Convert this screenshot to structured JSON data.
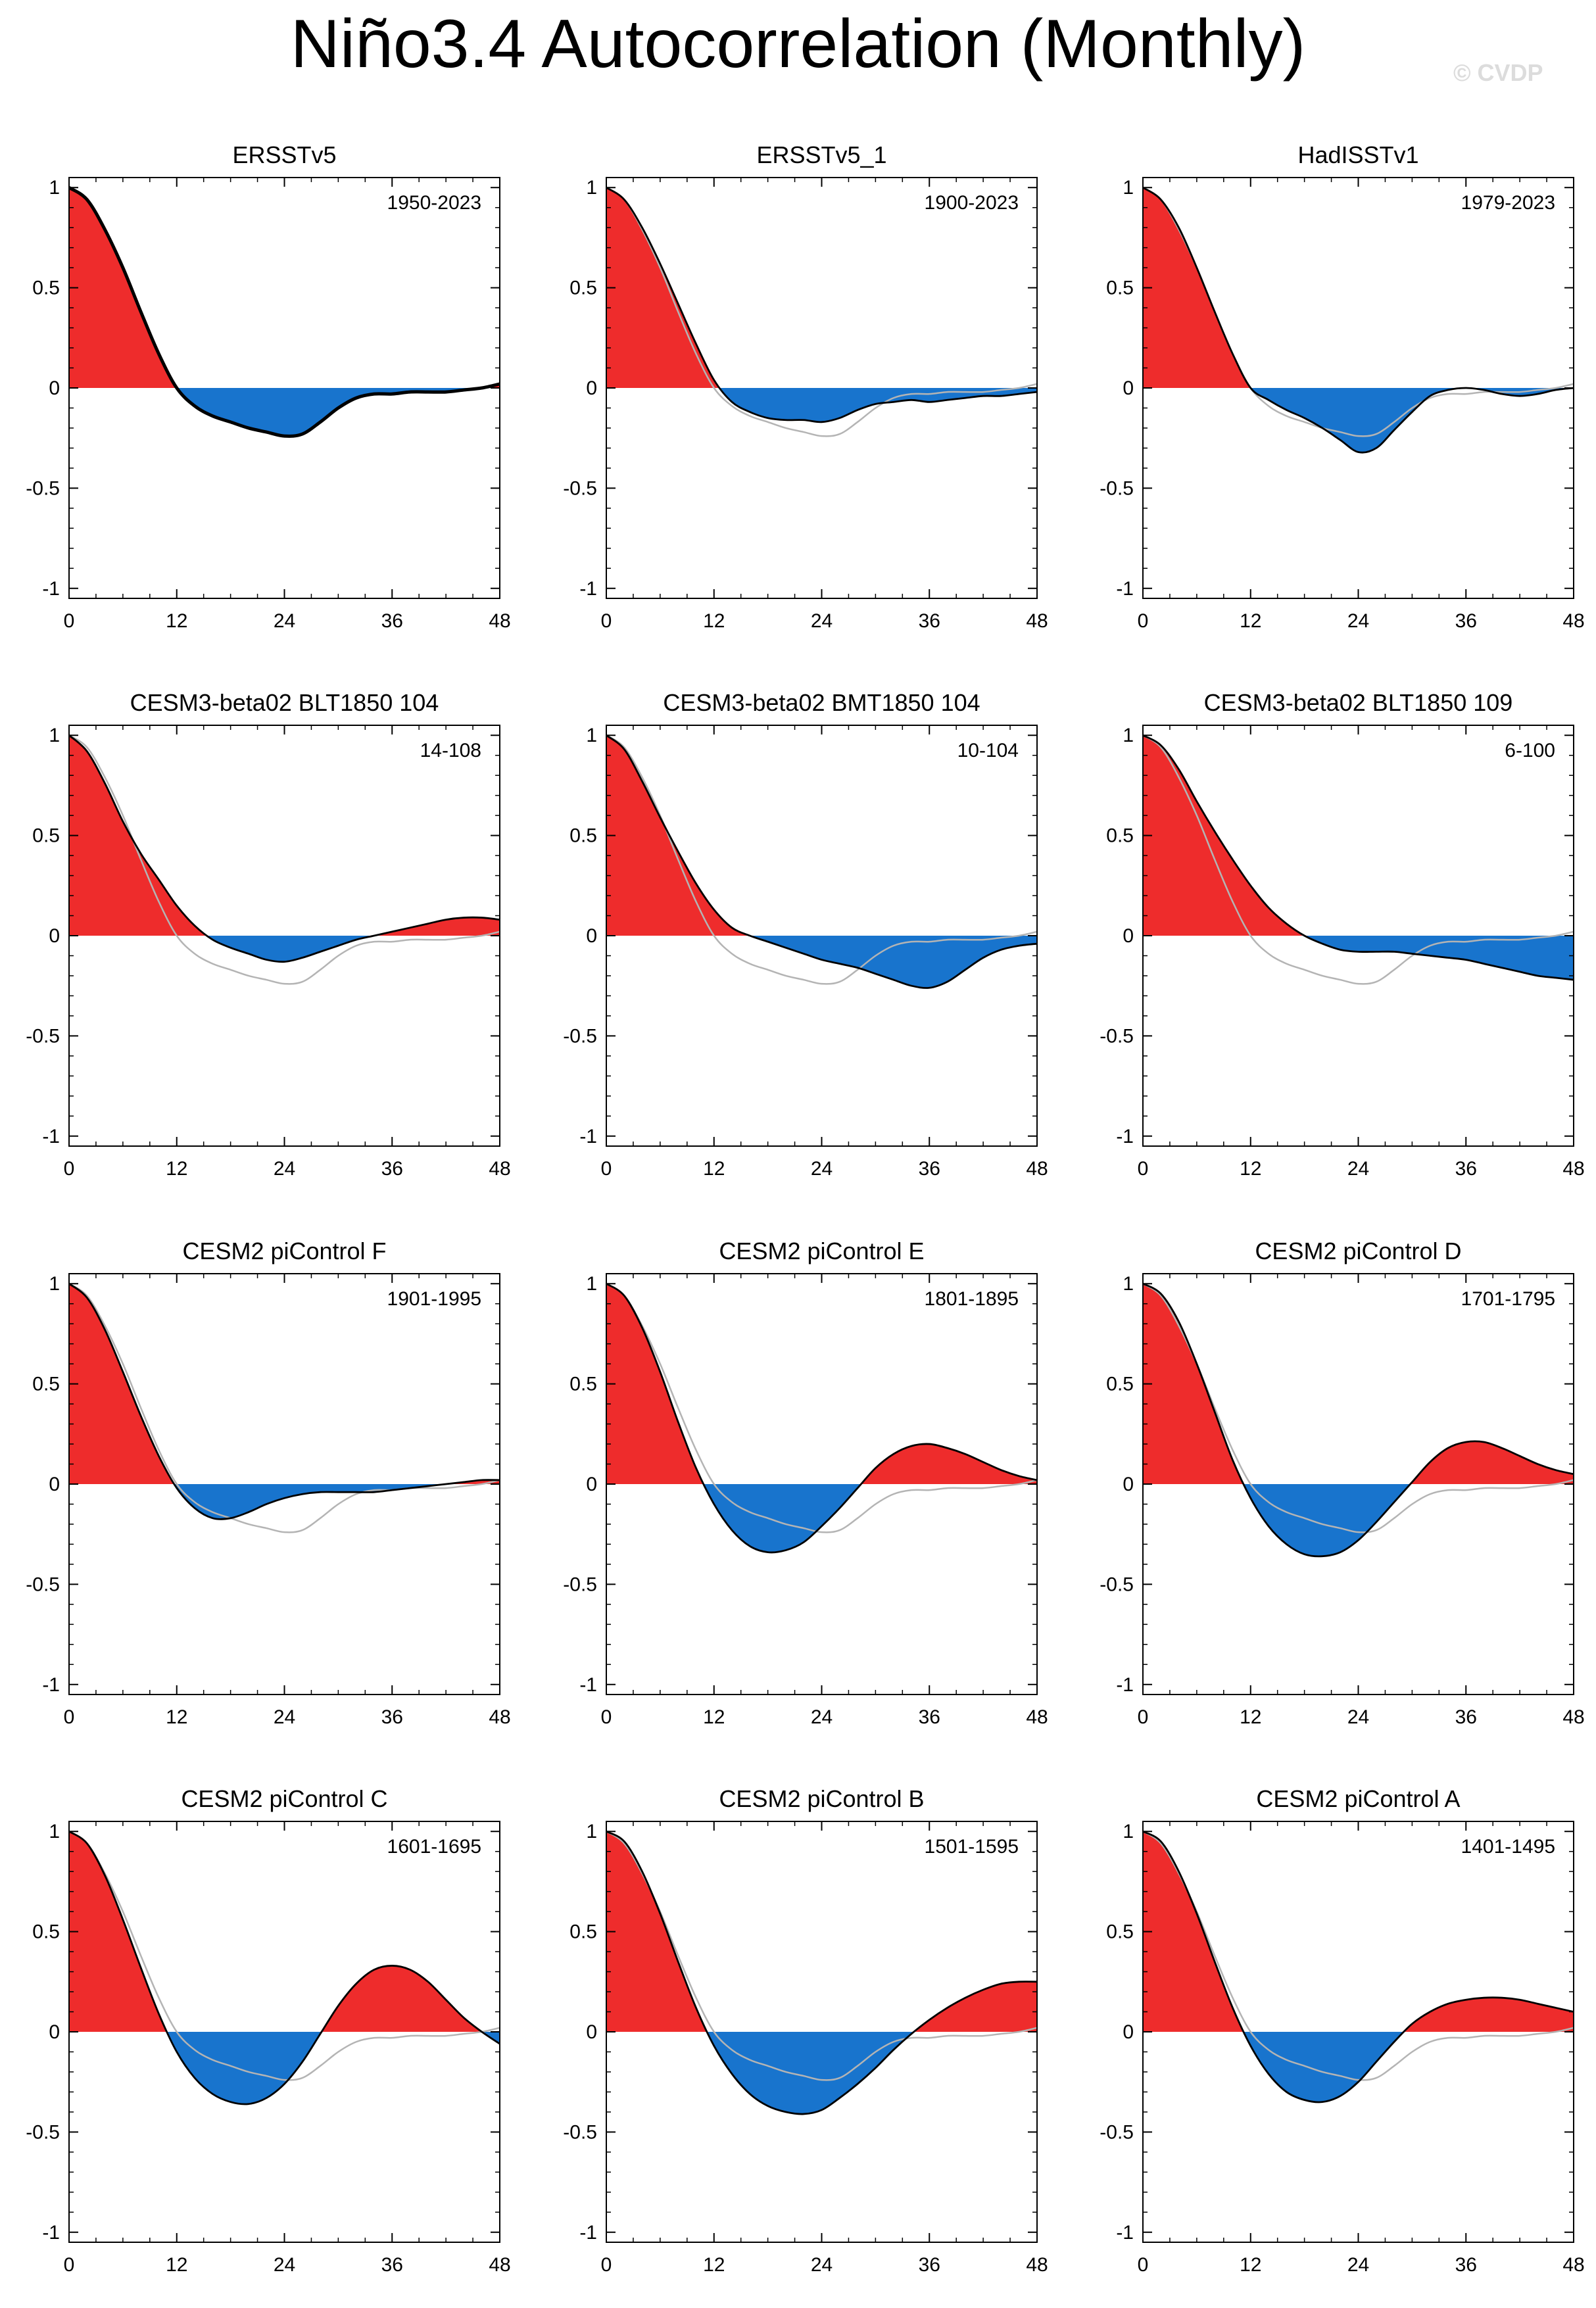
{
  "title": "Niño3.4 Autocorrelation (Monthly)",
  "watermark": "© CVDP",
  "colors": {
    "positive": "#ee2c2c",
    "negative": "#1874cd",
    "reference": "#b4b4b4",
    "line": "#000000"
  },
  "chart_data": [
    {
      "type": "area",
      "title": "ERSSTv5",
      "period": "1950-2023",
      "x": [
        0,
        2,
        4,
        6,
        8,
        10,
        12,
        14,
        16,
        18,
        20,
        22,
        24,
        26,
        28,
        30,
        32,
        34,
        36,
        38,
        40,
        42,
        44,
        46,
        48
      ],
      "y": [
        1.0,
        0.94,
        0.79,
        0.6,
        0.38,
        0.17,
        0.0,
        -0.09,
        -0.14,
        -0.17,
        -0.2,
        -0.22,
        -0.24,
        -0.23,
        -0.17,
        -0.1,
        -0.05,
        -0.03,
        -0.03,
        -0.02,
        -0.02,
        -0.02,
        -0.01,
        0.0,
        0.02
      ],
      "reference": [
        1.0,
        0.94,
        0.79,
        0.6,
        0.38,
        0.17,
        0.0,
        -0.09,
        -0.14,
        -0.17,
        -0.2,
        -0.22,
        -0.24,
        -0.23,
        -0.17,
        -0.1,
        -0.05,
        -0.03,
        -0.03,
        -0.02,
        -0.02,
        -0.02,
        -0.01,
        0.0,
        0.02
      ],
      "xticks": [
        0,
        12,
        24,
        36,
        48
      ],
      "yticks": [
        1,
        0.5,
        0,
        -0.5,
        -1
      ],
      "xlim": [
        0,
        48
      ],
      "ylim": [
        -1.05,
        1.05
      ]
    },
    {
      "type": "area",
      "title": "ERSSTv5_1",
      "period": "1900-2023",
      "x": [
        0,
        2,
        4,
        6,
        8,
        10,
        12,
        14,
        16,
        18,
        20,
        22,
        24,
        26,
        28,
        30,
        32,
        34,
        36,
        38,
        40,
        42,
        44,
        46,
        48
      ],
      "y": [
        1.0,
        0.94,
        0.8,
        0.62,
        0.42,
        0.22,
        0.04,
        -0.07,
        -0.12,
        -0.15,
        -0.16,
        -0.16,
        -0.17,
        -0.15,
        -0.11,
        -0.08,
        -0.07,
        -0.06,
        -0.07,
        -0.06,
        -0.05,
        -0.04,
        -0.04,
        -0.03,
        -0.02
      ],
      "reference": [
        1.0,
        0.94,
        0.79,
        0.6,
        0.38,
        0.17,
        0.0,
        -0.09,
        -0.14,
        -0.17,
        -0.2,
        -0.22,
        -0.24,
        -0.23,
        -0.17,
        -0.1,
        -0.05,
        -0.03,
        -0.03,
        -0.02,
        -0.02,
        -0.02,
        -0.01,
        0.0,
        0.02
      ],
      "xticks": [
        0,
        12,
        24,
        36,
        48
      ],
      "yticks": [
        1,
        0.5,
        0,
        -0.5,
        -1
      ],
      "xlim": [
        0,
        48
      ],
      "ylim": [
        -1.05,
        1.05
      ]
    },
    {
      "type": "area",
      "title": "HadISSTv1",
      "period": "1979-2023",
      "x": [
        0,
        2,
        4,
        6,
        8,
        10,
        12,
        14,
        16,
        18,
        20,
        22,
        24,
        26,
        28,
        30,
        32,
        34,
        36,
        38,
        40,
        42,
        44,
        46,
        48
      ],
      "y": [
        1.0,
        0.94,
        0.8,
        0.6,
        0.38,
        0.17,
        0.0,
        -0.06,
        -0.11,
        -0.15,
        -0.2,
        -0.26,
        -0.32,
        -0.3,
        -0.21,
        -0.12,
        -0.04,
        -0.01,
        0.0,
        -0.01,
        -0.03,
        -0.04,
        -0.03,
        -0.01,
        0.0
      ],
      "reference": [
        1.0,
        0.94,
        0.79,
        0.6,
        0.38,
        0.17,
        0.0,
        -0.09,
        -0.14,
        -0.17,
        -0.2,
        -0.22,
        -0.24,
        -0.23,
        -0.17,
        -0.1,
        -0.05,
        -0.03,
        -0.03,
        -0.02,
        -0.02,
        -0.02,
        -0.01,
        0.0,
        0.02
      ],
      "xticks": [
        0,
        12,
        24,
        36,
        48
      ],
      "yticks": [
        1,
        0.5,
        0,
        -0.5,
        -1
      ],
      "xlim": [
        0,
        48
      ],
      "ylim": [
        -1.05,
        1.05
      ]
    },
    {
      "type": "area",
      "title": "CESM3-beta02 BLT1850 104",
      "period": "14-108",
      "x": [
        0,
        2,
        4,
        6,
        8,
        10,
        12,
        14,
        16,
        18,
        20,
        22,
        24,
        26,
        28,
        30,
        32,
        34,
        36,
        38,
        40,
        42,
        44,
        46,
        48
      ],
      "y": [
        1.0,
        0.92,
        0.76,
        0.57,
        0.41,
        0.28,
        0.15,
        0.05,
        -0.02,
        -0.06,
        -0.09,
        -0.12,
        -0.13,
        -0.11,
        -0.08,
        -0.05,
        -0.02,
        0.0,
        0.02,
        0.04,
        0.06,
        0.08,
        0.09,
        0.09,
        0.08
      ],
      "reference": [
        1.0,
        0.94,
        0.79,
        0.6,
        0.38,
        0.17,
        0.0,
        -0.09,
        -0.14,
        -0.17,
        -0.2,
        -0.22,
        -0.24,
        -0.23,
        -0.17,
        -0.1,
        -0.05,
        -0.03,
        -0.03,
        -0.02,
        -0.02,
        -0.02,
        -0.01,
        0.0,
        0.02
      ],
      "xticks": [
        0,
        12,
        24,
        36,
        48
      ],
      "yticks": [
        1,
        0.5,
        0,
        -0.5,
        -1
      ],
      "xlim": [
        0,
        48
      ],
      "ylim": [
        -1.05,
        1.05
      ]
    },
    {
      "type": "area",
      "title": "CESM3-beta02 BMT1850 104",
      "period": "10-104",
      "x": [
        0,
        2,
        4,
        6,
        8,
        10,
        12,
        14,
        16,
        18,
        20,
        22,
        24,
        26,
        28,
        30,
        32,
        34,
        36,
        38,
        40,
        42,
        44,
        46,
        48
      ],
      "y": [
        1.0,
        0.93,
        0.77,
        0.59,
        0.42,
        0.26,
        0.13,
        0.04,
        0.0,
        -0.03,
        -0.06,
        -0.09,
        -0.12,
        -0.14,
        -0.16,
        -0.19,
        -0.22,
        -0.25,
        -0.26,
        -0.23,
        -0.17,
        -0.11,
        -0.07,
        -0.05,
        -0.04
      ],
      "reference": [
        1.0,
        0.94,
        0.79,
        0.6,
        0.38,
        0.17,
        0.0,
        -0.09,
        -0.14,
        -0.17,
        -0.2,
        -0.22,
        -0.24,
        -0.23,
        -0.17,
        -0.1,
        -0.05,
        -0.03,
        -0.03,
        -0.02,
        -0.02,
        -0.02,
        -0.01,
        0.0,
        0.02
      ],
      "xticks": [
        0,
        12,
        24,
        36,
        48
      ],
      "yticks": [
        1,
        0.5,
        0,
        -0.5,
        -1
      ],
      "xlim": [
        0,
        48
      ],
      "ylim": [
        -1.05,
        1.05
      ]
    },
    {
      "type": "area",
      "title": "CESM3-beta02 BLT1850 109",
      "period": "6-100",
      "x": [
        0,
        2,
        4,
        6,
        8,
        10,
        12,
        14,
        16,
        18,
        20,
        22,
        24,
        26,
        28,
        30,
        32,
        34,
        36,
        38,
        40,
        42,
        44,
        46,
        48
      ],
      "y": [
        1.0,
        0.95,
        0.83,
        0.67,
        0.52,
        0.38,
        0.25,
        0.14,
        0.06,
        0.0,
        -0.04,
        -0.07,
        -0.08,
        -0.08,
        -0.08,
        -0.09,
        -0.1,
        -0.11,
        -0.12,
        -0.14,
        -0.16,
        -0.18,
        -0.2,
        -0.21,
        -0.22
      ],
      "reference": [
        1.0,
        0.94,
        0.79,
        0.6,
        0.38,
        0.17,
        0.0,
        -0.09,
        -0.14,
        -0.17,
        -0.2,
        -0.22,
        -0.24,
        -0.23,
        -0.17,
        -0.1,
        -0.05,
        -0.03,
        -0.03,
        -0.02,
        -0.02,
        -0.02,
        -0.01,
        0.0,
        0.02
      ],
      "xticks": [
        0,
        12,
        24,
        36,
        48
      ],
      "yticks": [
        1,
        0.5,
        0,
        -0.5,
        -1
      ],
      "xlim": [
        0,
        48
      ],
      "ylim": [
        -1.05,
        1.05
      ]
    },
    {
      "type": "area",
      "title": "CESM2 piControl F",
      "period": "1901-1995",
      "x": [
        0,
        2,
        4,
        6,
        8,
        10,
        12,
        14,
        16,
        18,
        20,
        22,
        24,
        26,
        28,
        30,
        32,
        34,
        36,
        38,
        40,
        42,
        44,
        46,
        48
      ],
      "y": [
        1.0,
        0.93,
        0.77,
        0.56,
        0.34,
        0.14,
        -0.02,
        -0.12,
        -0.17,
        -0.17,
        -0.14,
        -0.1,
        -0.07,
        -0.05,
        -0.04,
        -0.04,
        -0.04,
        -0.04,
        -0.03,
        -0.02,
        -0.01,
        0.0,
        0.01,
        0.02,
        0.02
      ],
      "reference": [
        1.0,
        0.94,
        0.79,
        0.6,
        0.38,
        0.17,
        0.0,
        -0.09,
        -0.14,
        -0.17,
        -0.2,
        -0.22,
        -0.24,
        -0.23,
        -0.17,
        -0.1,
        -0.05,
        -0.03,
        -0.03,
        -0.02,
        -0.02,
        -0.02,
        -0.01,
        0.0,
        0.02
      ],
      "xticks": [
        0,
        12,
        24,
        36,
        48
      ],
      "yticks": [
        1,
        0.5,
        0,
        -0.5,
        -1
      ],
      "xlim": [
        0,
        48
      ],
      "ylim": [
        -1.05,
        1.05
      ]
    },
    {
      "type": "area",
      "title": "CESM2 piControl E",
      "period": "1801-1895",
      "x": [
        0,
        2,
        4,
        6,
        8,
        10,
        12,
        14,
        16,
        18,
        20,
        22,
        24,
        26,
        28,
        30,
        32,
        34,
        36,
        38,
        40,
        42,
        44,
        46,
        48
      ],
      "y": [
        1.0,
        0.94,
        0.78,
        0.56,
        0.31,
        0.08,
        -0.1,
        -0.23,
        -0.31,
        -0.34,
        -0.33,
        -0.29,
        -0.21,
        -0.12,
        -0.02,
        0.08,
        0.15,
        0.19,
        0.2,
        0.18,
        0.15,
        0.11,
        0.07,
        0.04,
        0.02
      ],
      "reference": [
        1.0,
        0.94,
        0.79,
        0.6,
        0.38,
        0.17,
        0.0,
        -0.09,
        -0.14,
        -0.17,
        -0.2,
        -0.22,
        -0.24,
        -0.23,
        -0.17,
        -0.1,
        -0.05,
        -0.03,
        -0.03,
        -0.02,
        -0.02,
        -0.02,
        -0.01,
        0.0,
        0.02
      ],
      "xticks": [
        0,
        12,
        24,
        36,
        48
      ],
      "yticks": [
        1,
        0.5,
        0,
        -0.5,
        -1
      ],
      "xlim": [
        0,
        48
      ],
      "ylim": [
        -1.05,
        1.05
      ]
    },
    {
      "type": "area",
      "title": "CESM2 piControl D",
      "period": "1701-1795",
      "x": [
        0,
        2,
        4,
        6,
        8,
        10,
        12,
        14,
        16,
        18,
        20,
        22,
        24,
        26,
        28,
        30,
        32,
        34,
        36,
        38,
        40,
        42,
        44,
        46,
        48
      ],
      "y": [
        1.0,
        0.95,
        0.81,
        0.6,
        0.36,
        0.12,
        -0.07,
        -0.21,
        -0.3,
        -0.35,
        -0.36,
        -0.34,
        -0.28,
        -0.19,
        -0.09,
        0.01,
        0.11,
        0.18,
        0.21,
        0.21,
        0.18,
        0.14,
        0.1,
        0.07,
        0.05
      ],
      "reference": [
        1.0,
        0.94,
        0.79,
        0.6,
        0.38,
        0.17,
        0.0,
        -0.09,
        -0.14,
        -0.17,
        -0.2,
        -0.22,
        -0.24,
        -0.23,
        -0.17,
        -0.1,
        -0.05,
        -0.03,
        -0.03,
        -0.02,
        -0.02,
        -0.02,
        -0.01,
        0.0,
        0.02
      ],
      "xticks": [
        0,
        12,
        24,
        36,
        48
      ],
      "yticks": [
        1,
        0.5,
        0,
        -0.5,
        -1
      ],
      "xlim": [
        0,
        48
      ],
      "ylim": [
        -1.05,
        1.05
      ]
    },
    {
      "type": "area",
      "title": "CESM2 piControl C",
      "period": "1601-1695",
      "x": [
        0,
        2,
        4,
        6,
        8,
        10,
        12,
        14,
        16,
        18,
        20,
        22,
        24,
        26,
        28,
        30,
        32,
        34,
        36,
        38,
        40,
        42,
        44,
        46,
        48
      ],
      "y": [
        1.0,
        0.94,
        0.78,
        0.56,
        0.32,
        0.09,
        -0.1,
        -0.23,
        -0.31,
        -0.35,
        -0.36,
        -0.33,
        -0.26,
        -0.15,
        -0.01,
        0.13,
        0.24,
        0.31,
        0.33,
        0.31,
        0.25,
        0.16,
        0.07,
        0.0,
        -0.06
      ],
      "reference": [
        1.0,
        0.94,
        0.79,
        0.6,
        0.38,
        0.17,
        0.0,
        -0.09,
        -0.14,
        -0.17,
        -0.2,
        -0.22,
        -0.24,
        -0.23,
        -0.17,
        -0.1,
        -0.05,
        -0.03,
        -0.03,
        -0.02,
        -0.02,
        -0.02,
        -0.01,
        0.0,
        0.02
      ],
      "xticks": [
        0,
        12,
        24,
        36,
        48
      ],
      "yticks": [
        1,
        0.5,
        0,
        -0.5,
        -1
      ],
      "xlim": [
        0,
        48
      ],
      "ylim": [
        -1.05,
        1.05
      ]
    },
    {
      "type": "area",
      "title": "CESM2 piControl B",
      "period": "1501-1595",
      "x": [
        0,
        2,
        4,
        6,
        8,
        10,
        12,
        14,
        16,
        18,
        20,
        22,
        24,
        26,
        28,
        30,
        32,
        34,
        36,
        38,
        40,
        42,
        44,
        46,
        48
      ],
      "y": [
        1.0,
        0.95,
        0.8,
        0.59,
        0.35,
        0.12,
        -0.07,
        -0.21,
        -0.31,
        -0.37,
        -0.4,
        -0.41,
        -0.39,
        -0.33,
        -0.26,
        -0.18,
        -0.09,
        -0.01,
        0.06,
        0.12,
        0.17,
        0.21,
        0.24,
        0.25,
        0.25
      ],
      "reference": [
        1.0,
        0.94,
        0.79,
        0.6,
        0.38,
        0.17,
        0.0,
        -0.09,
        -0.14,
        -0.17,
        -0.2,
        -0.22,
        -0.24,
        -0.23,
        -0.17,
        -0.1,
        -0.05,
        -0.03,
        -0.03,
        -0.02,
        -0.02,
        -0.02,
        -0.01,
        0.0,
        0.02
      ],
      "xticks": [
        0,
        12,
        24,
        36,
        48
      ],
      "yticks": [
        1,
        0.5,
        0,
        -0.5,
        -1
      ],
      "xlim": [
        0,
        48
      ],
      "ylim": [
        -1.05,
        1.05
      ]
    },
    {
      "type": "area",
      "title": "CESM2 piControl A",
      "period": "1401-1495",
      "x": [
        0,
        2,
        4,
        6,
        8,
        10,
        12,
        14,
        16,
        18,
        20,
        22,
        24,
        26,
        28,
        30,
        32,
        34,
        36,
        38,
        40,
        42,
        44,
        46,
        48
      ],
      "y": [
        1.0,
        0.95,
        0.8,
        0.59,
        0.35,
        0.12,
        -0.07,
        -0.21,
        -0.3,
        -0.34,
        -0.35,
        -0.32,
        -0.25,
        -0.15,
        -0.05,
        0.04,
        0.1,
        0.14,
        0.16,
        0.17,
        0.17,
        0.16,
        0.14,
        0.12,
        0.1
      ],
      "reference": [
        1.0,
        0.94,
        0.79,
        0.6,
        0.38,
        0.17,
        0.0,
        -0.09,
        -0.14,
        -0.17,
        -0.2,
        -0.22,
        -0.24,
        -0.23,
        -0.17,
        -0.1,
        -0.05,
        -0.03,
        -0.03,
        -0.02,
        -0.02,
        -0.02,
        -0.01,
        0.0,
        0.02
      ],
      "xticks": [
        0,
        12,
        24,
        36,
        48
      ],
      "yticks": [
        1,
        0.5,
        0,
        -0.5,
        -1
      ],
      "xlim": [
        0,
        48
      ],
      "ylim": [
        -1.05,
        1.05
      ]
    }
  ]
}
